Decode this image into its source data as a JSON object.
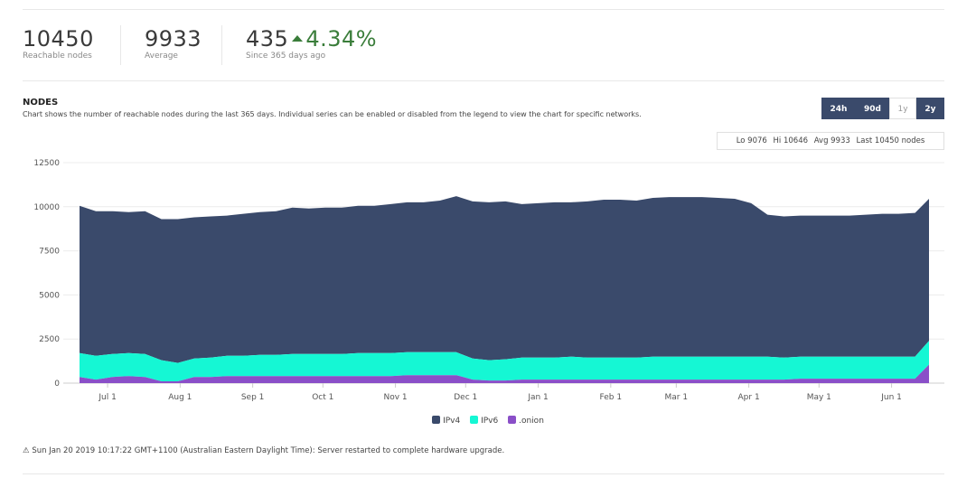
{
  "stats": [
    {
      "value": "10450",
      "label": "Reachable nodes"
    },
    {
      "value": "9933",
      "label": "Average"
    },
    {
      "value": "435",
      "delta": "4.34%",
      "label": "Since 365 days ago"
    }
  ],
  "section": {
    "title": "NODES",
    "description": "Chart shows the number of reachable nodes during the last 365 days. Individual series can be enabled or disabled from the legend to view the chart for specific networks."
  },
  "ranges": [
    {
      "label": "24h",
      "active": true
    },
    {
      "label": "90d",
      "active": true
    },
    {
      "label": "1y",
      "active": false
    },
    {
      "label": "2y",
      "active": true
    }
  ],
  "summary": {
    "lo": "Lo 9076",
    "hi": "Hi 10646",
    "avg": "Avg 9933",
    "last": "Last 10450 nodes"
  },
  "note": "Sun Jan 20 2019 10:17:22 GMT+1100 (Australian Eastern Daylight Time): Server restarted to complete hardware upgrade.",
  "colors": {
    "ipv4": "#3a4a6b",
    "ipv6": "#15f7d4",
    "onion": "#8a4fc8",
    "accent": "#3a4a6b",
    "up": "#3a7d3a"
  },
  "chart_data": {
    "type": "area",
    "stacked": true,
    "x_unit": "date",
    "x": [
      "2018-06-19",
      "2018-06-26",
      "2018-07-03",
      "2018-07-10",
      "2018-07-17",
      "2018-07-24",
      "2018-07-31",
      "2018-08-07",
      "2018-08-14",
      "2018-08-21",
      "2018-08-28",
      "2018-09-04",
      "2018-09-11",
      "2018-09-18",
      "2018-09-25",
      "2018-10-02",
      "2018-10-09",
      "2018-10-16",
      "2018-10-23",
      "2018-10-30",
      "2018-11-06",
      "2018-11-13",
      "2018-11-20",
      "2018-11-27",
      "2018-12-04",
      "2018-12-11",
      "2018-12-18",
      "2018-12-25",
      "2019-01-01",
      "2019-01-08",
      "2019-01-15",
      "2019-01-22",
      "2019-01-29",
      "2019-02-05",
      "2019-02-12",
      "2019-02-19",
      "2019-02-26",
      "2019-03-05",
      "2019-03-12",
      "2019-03-19",
      "2019-03-26",
      "2019-04-02",
      "2019-04-09",
      "2019-04-16",
      "2019-04-23",
      "2019-04-30",
      "2019-05-07",
      "2019-05-14",
      "2019-05-21",
      "2019-05-28",
      "2019-06-04",
      "2019-06-11",
      "2019-06-17"
    ],
    "series": [
      {
        "name": "IPv4",
        "color": "#3a4a6b",
        "values": [
          8350,
          8200,
          8100,
          8000,
          8100,
          8000,
          8150,
          8000,
          8000,
          7950,
          8050,
          8100,
          8150,
          8300,
          8250,
          8300,
          8300,
          8350,
          8350,
          8450,
          8500,
          8500,
          8600,
          8850,
          8900,
          8950,
          8950,
          8700,
          8750,
          8800,
          8750,
          8850,
          8950,
          8950,
          8900,
          9000,
          9050,
          9050,
          9050,
          9000,
          8950,
          8700,
          8050,
          8000,
          8000,
          8000,
          8000,
          8000,
          8050,
          8100,
          8100,
          8150,
          8050
        ]
      },
      {
        "name": "IPv6",
        "color": "#15f7d4",
        "values": [
          1350,
          1350,
          1300,
          1300,
          1300,
          1200,
          1050,
          1050,
          1100,
          1150,
          1150,
          1200,
          1200,
          1250,
          1250,
          1250,
          1250,
          1300,
          1300,
          1300,
          1300,
          1300,
          1300,
          1300,
          1200,
          1150,
          1200,
          1250,
          1250,
          1250,
          1300,
          1250,
          1250,
          1250,
          1250,
          1300,
          1300,
          1300,
          1300,
          1300,
          1300,
          1300,
          1300,
          1250,
          1250,
          1250,
          1250,
          1250,
          1250,
          1250,
          1250,
          1250,
          1350
        ]
      },
      {
        "name": ".onion",
        "color": "#8a4fc8",
        "values": [
          350,
          200,
          350,
          400,
          350,
          100,
          100,
          350,
          350,
          400,
          400,
          400,
          400,
          400,
          400,
          400,
          400,
          400,
          400,
          400,
          450,
          450,
          450,
          450,
          200,
          150,
          150,
          200,
          200,
          200,
          200,
          200,
          200,
          200,
          200,
          200,
          200,
          200,
          200,
          200,
          200,
          200,
          200,
          200,
          250,
          250,
          250,
          250,
          250,
          250,
          250,
          250,
          1050
        ]
      }
    ],
    "xticks": [
      "Jul 1",
      "Aug 1",
      "Sep 1",
      "Oct 1",
      "Nov 1",
      "Dec 1",
      "Jan 1",
      "Feb 1",
      "Mar 1",
      "Apr 1",
      "May 1",
      "Jun 1"
    ],
    "xtick_dates": [
      "2018-07-01",
      "2018-08-01",
      "2018-09-01",
      "2018-10-01",
      "2018-11-01",
      "2018-12-01",
      "2019-01-01",
      "2019-02-01",
      "2019-03-01",
      "2019-04-01",
      "2019-05-01",
      "2019-06-01"
    ],
    "yticks": [
      "0",
      "2500",
      "5000",
      "7500",
      "10000",
      "12500"
    ],
    "ylim": [
      0,
      12500
    ],
    "legend": "bottom-center",
    "grid": true
  }
}
